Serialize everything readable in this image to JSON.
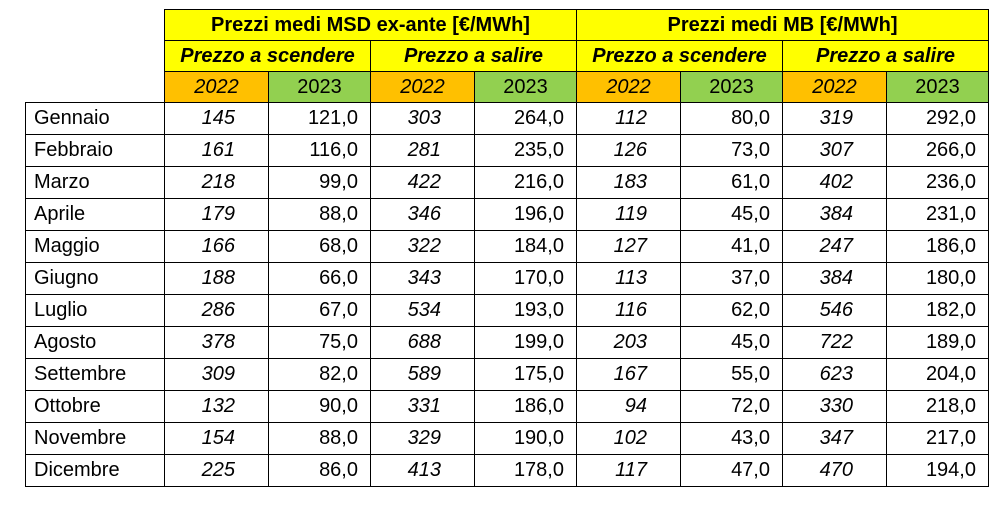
{
  "groups": [
    {
      "title": "Prezzi medi MSD ex-ante [€/MWh]"
    },
    {
      "title": "Prezzi medi MB [€/MWh]"
    }
  ],
  "subheaders": [
    "Prezzo a scendere",
    "Prezzo a salire",
    "Prezzo a scendere",
    "Prezzo a salire"
  ],
  "years": [
    "2022",
    "2023",
    "2022",
    "2023",
    "2022",
    "2023",
    "2022",
    "2023"
  ],
  "rows": [
    {
      "month": "Gennaio",
      "values": [
        "145",
        "121,0",
        "303",
        "264,0",
        "112",
        "80,0",
        "319",
        "292,0"
      ]
    },
    {
      "month": "Febbraio",
      "values": [
        "161",
        "116,0",
        "281",
        "235,0",
        "126",
        "73,0",
        "307",
        "266,0"
      ]
    },
    {
      "month": "Marzo",
      "values": [
        "218",
        "99,0",
        "422",
        "216,0",
        "183",
        "61,0",
        "402",
        "236,0"
      ]
    },
    {
      "month": "Aprile",
      "values": [
        "179",
        "88,0",
        "346",
        "196,0",
        "119",
        "45,0",
        "384",
        "231,0"
      ]
    },
    {
      "month": "Maggio",
      "values": [
        "166",
        "68,0",
        "322",
        "184,0",
        "127",
        "41,0",
        "247",
        "186,0"
      ]
    },
    {
      "month": "Giugno",
      "values": [
        "188",
        "66,0",
        "343",
        "170,0",
        "113",
        "37,0",
        "384",
        "180,0"
      ]
    },
    {
      "month": "Luglio",
      "values": [
        "286",
        "67,0",
        "534",
        "193,0",
        "116",
        "62,0",
        "546",
        "182,0"
      ]
    },
    {
      "month": "Agosto",
      "values": [
        "378",
        "75,0",
        "688",
        "199,0",
        "203",
        "45,0",
        "722",
        "189,0"
      ]
    },
    {
      "month": "Settembre",
      "values": [
        "309",
        "82,0",
        "589",
        "175,0",
        "167",
        "55,0",
        "623",
        "204,0"
      ]
    },
    {
      "month": "Ottobre",
      "values": [
        "132",
        "90,0",
        "331",
        "186,0",
        "94",
        "72,0",
        "330",
        "218,0"
      ]
    },
    {
      "month": "Novembre",
      "values": [
        "154",
        "88,0",
        "329",
        "190,0",
        "102",
        "43,0",
        "347",
        "217,0"
      ]
    },
    {
      "month": "Dicembre",
      "values": [
        "225",
        "86,0",
        "413",
        "178,0",
        "117",
        "47,0",
        "470",
        "194,0"
      ]
    }
  ],
  "colors": {
    "group_header": "#ffff00",
    "year_2022": "#ffc000",
    "year_2023": "#92d050"
  }
}
